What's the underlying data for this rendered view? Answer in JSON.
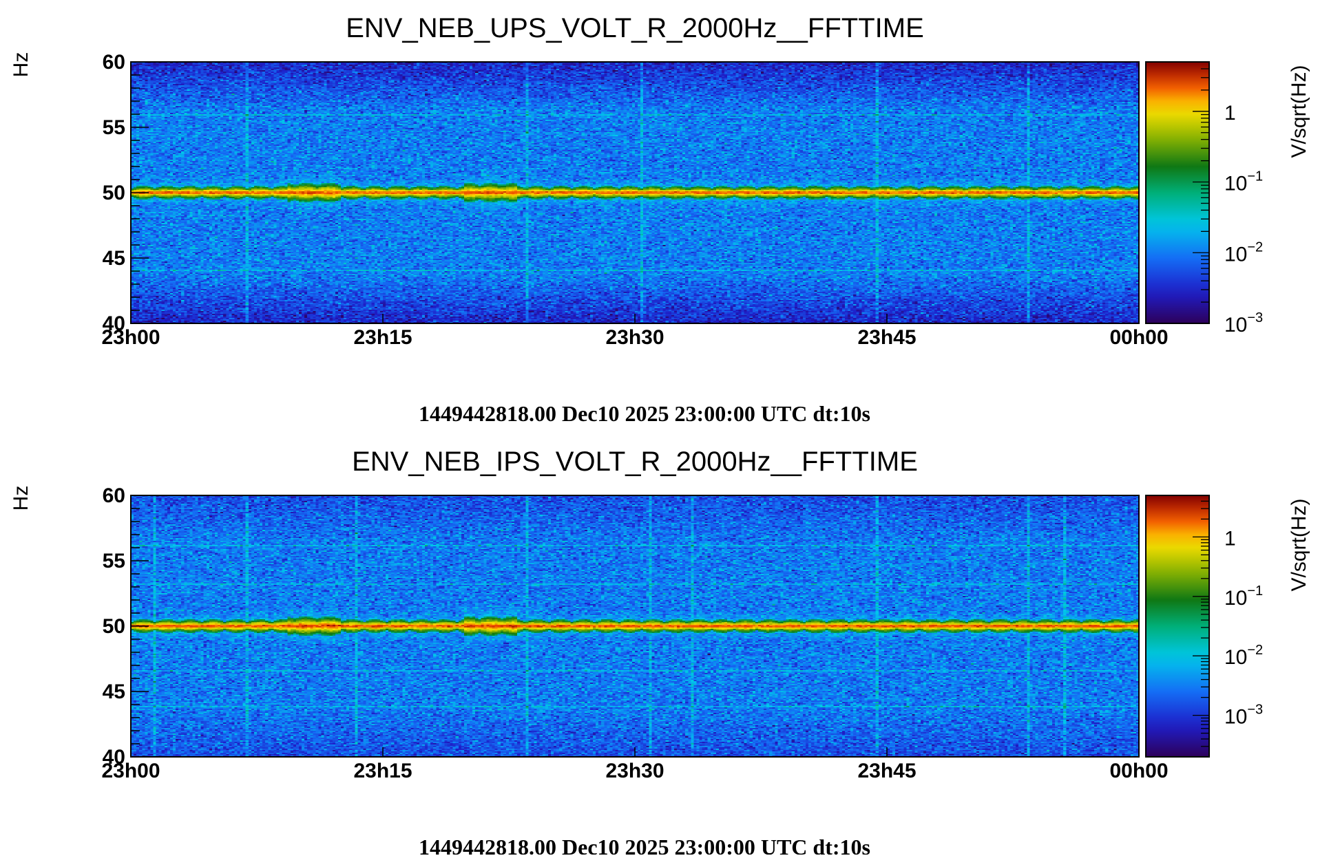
{
  "chart_data": [
    {
      "type": "heatmap",
      "title": "ENV_NEB_UPS_VOLT_R_2000Hz__FFTTIME",
      "ylabel": "Hz",
      "ylim": [
        40,
        60
      ],
      "yticks": [
        "40",
        "45",
        "50",
        "55",
        "60"
      ],
      "ytick_values": [
        40,
        45,
        50,
        55,
        60
      ],
      "xticks": [
        "23h00",
        "23h15",
        "23h30",
        "23h45",
        "00h00"
      ],
      "xtick_values": [
        0,
        15,
        30,
        45,
        60
      ],
      "xlim_minutes": [
        0,
        60
      ],
      "colorbar": {
        "label": "V/sqrt(Hz)",
        "scale": "log",
        "range": [
          0.001,
          5
        ],
        "ticks": [
          {
            "base": "10",
            "exp": "−3",
            "value": 0.001
          },
          {
            "base": "10",
            "exp": "−2",
            "value": 0.01
          },
          {
            "base": "10",
            "exp": "−1",
            "value": 0.1
          },
          {
            "base": "1",
            "exp": "",
            "value": 1
          }
        ]
      },
      "background_level": 0.01,
      "band_edge_level": 0.003,
      "line_freq_hz": 50,
      "line_level": 3,
      "horizontal_lines_hz": [
        44,
        56
      ],
      "vertical_lines_minutes": [
        6.8,
        23.5,
        30.4,
        44.5,
        53.5
      ],
      "footer": "1449442818.00 Dec10 2025 23:00:00 UTC dt:10s"
    },
    {
      "type": "heatmap",
      "title": "ENV_NEB_IPS_VOLT_R_2000Hz__FFTTIME",
      "ylabel": "Hz",
      "ylim": [
        40,
        60
      ],
      "yticks": [
        "40",
        "45",
        "50",
        "55",
        "60"
      ],
      "ytick_values": [
        40,
        45,
        50,
        55,
        60
      ],
      "xticks": [
        "23h00",
        "23h15",
        "23h30",
        "23h45",
        "00h00"
      ],
      "xtick_values": [
        0,
        15,
        30,
        45,
        60
      ],
      "xlim_minutes": [
        0,
        60
      ],
      "colorbar": {
        "label": "V/sqrt(Hz)",
        "scale": "log",
        "range": [
          0.0002,
          5
        ],
        "ticks": [
          {
            "base": "10",
            "exp": "−3",
            "value": 0.001
          },
          {
            "base": "10",
            "exp": "−2",
            "value": 0.01
          },
          {
            "base": "10",
            "exp": "−1",
            "value": 0.1
          },
          {
            "base": "1",
            "exp": "",
            "value": 1
          }
        ]
      },
      "background_level": 0.003,
      "band_edge_level": 0.0015,
      "line_freq_hz": 50,
      "line_level": 3,
      "horizontal_lines_hz": [
        43.8,
        46.6,
        53.2,
        56.2
      ],
      "vertical_lines_minutes": [
        1.3,
        6.8,
        13.3,
        23.5,
        30.9,
        33.5,
        44.5,
        53.5,
        55.7
      ],
      "footer": "1449442818.00 Dec10 2025 23:00:00 UTC dt:10s"
    }
  ]
}
